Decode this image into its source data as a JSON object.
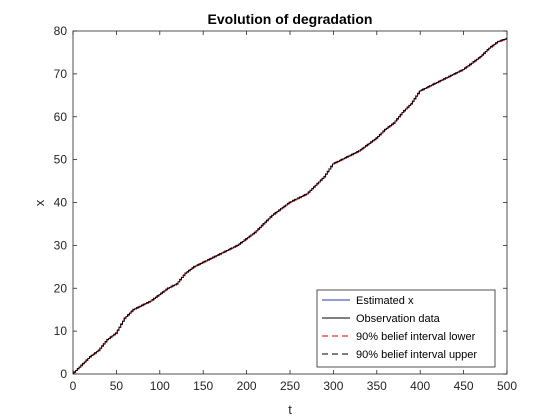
{
  "chart_data": {
    "type": "line",
    "title": "Evolution of degradation",
    "xlabel": "t",
    "ylabel": "x",
    "xlim": [
      0,
      500
    ],
    "ylim": [
      0,
      80
    ],
    "xticks": [
      0,
      50,
      100,
      150,
      200,
      250,
      300,
      350,
      400,
      450,
      500
    ],
    "yticks": [
      0,
      10,
      20,
      30,
      40,
      50,
      60,
      70,
      80
    ],
    "grid": false,
    "legend_position": "bottom-right",
    "series": [
      {
        "name": "Estimated x",
        "color": "#1f3ca8",
        "dash": "solid",
        "x": [
          0,
          10,
          20,
          30,
          40,
          50,
          60,
          70,
          80,
          90,
          100,
          110,
          120,
          130,
          140,
          150,
          160,
          170,
          180,
          190,
          200,
          210,
          220,
          230,
          240,
          250,
          260,
          270,
          280,
          290,
          300,
          310,
          320,
          330,
          340,
          350,
          360,
          370,
          380,
          390,
          400,
          410,
          420,
          430,
          440,
          450,
          460,
          470,
          480,
          490,
          500
        ],
        "y": [
          0,
          2,
          4,
          5.5,
          8,
          9.5,
          13,
          15,
          16,
          17,
          18.5,
          20,
          21,
          23.5,
          25,
          26,
          27,
          28,
          29,
          30,
          31.5,
          33,
          35,
          37,
          38.5,
          40,
          41,
          42,
          44,
          46,
          49,
          50,
          51,
          52,
          53.5,
          55,
          57,
          58.5,
          61,
          63,
          66,
          67,
          68,
          69,
          70,
          71,
          72.5,
          74,
          76,
          77.5,
          78.2
        ]
      },
      {
        "name": "Observation data",
        "color": "#000000",
        "dash": "solid",
        "x": [
          0,
          10,
          20,
          30,
          40,
          50,
          60,
          70,
          80,
          90,
          100,
          110,
          120,
          130,
          140,
          150,
          160,
          170,
          180,
          190,
          200,
          210,
          220,
          230,
          240,
          250,
          260,
          270,
          280,
          290,
          300,
          310,
          320,
          330,
          340,
          350,
          360,
          370,
          380,
          390,
          400,
          410,
          420,
          430,
          440,
          450,
          460,
          470,
          480,
          490,
          500
        ],
        "y": [
          0,
          2,
          4,
          5.5,
          8,
          9.5,
          13,
          15,
          16,
          17,
          18.5,
          20,
          21,
          23.5,
          25,
          26,
          27,
          28,
          29,
          30,
          31.5,
          33,
          35,
          37,
          38.5,
          40,
          41,
          42,
          44,
          46,
          49,
          50,
          51,
          52,
          53.5,
          55,
          57,
          58.5,
          61,
          63,
          66,
          67,
          68,
          69,
          70,
          71,
          72.5,
          74,
          76,
          77.5,
          78.2
        ]
      },
      {
        "name": "90% belief interval lower",
        "color": "#d00000",
        "dash": "dashed",
        "x": [
          0,
          10,
          20,
          30,
          40,
          50,
          60,
          70,
          80,
          90,
          100,
          110,
          120,
          130,
          140,
          150,
          160,
          170,
          180,
          190,
          200,
          210,
          220,
          230,
          240,
          250,
          260,
          270,
          280,
          290,
          300,
          310,
          320,
          330,
          340,
          350,
          360,
          370,
          380,
          390,
          400,
          410,
          420,
          430,
          440,
          450,
          460,
          470,
          480,
          490,
          500
        ],
        "y": [
          0,
          1.9,
          3.9,
          5.4,
          7.9,
          9.4,
          12.9,
          14.9,
          15.9,
          16.9,
          18.4,
          19.9,
          20.9,
          23.4,
          24.9,
          25.9,
          26.9,
          27.9,
          28.9,
          29.9,
          31.4,
          32.9,
          34.9,
          36.9,
          38.4,
          39.9,
          40.9,
          41.9,
          43.9,
          45.9,
          48.9,
          49.9,
          50.9,
          51.9,
          53.4,
          54.9,
          56.9,
          58.4,
          60.9,
          62.9,
          65.9,
          66.9,
          67.9,
          68.9,
          69.9,
          70.9,
          72.4,
          73.9,
          75.9,
          77.4,
          78.1
        ]
      },
      {
        "name": "90% belief interval upper",
        "color": "#000000",
        "dash": "dashed",
        "x": [
          0,
          10,
          20,
          30,
          40,
          50,
          60,
          70,
          80,
          90,
          100,
          110,
          120,
          130,
          140,
          150,
          160,
          170,
          180,
          190,
          200,
          210,
          220,
          230,
          240,
          250,
          260,
          270,
          280,
          290,
          300,
          310,
          320,
          330,
          340,
          350,
          360,
          370,
          380,
          390,
          400,
          410,
          420,
          430,
          440,
          450,
          460,
          470,
          480,
          490,
          500
        ],
        "y": [
          0.1,
          2.1,
          4.1,
          5.6,
          8.1,
          9.6,
          13.1,
          15.1,
          16.1,
          17.1,
          18.6,
          20.1,
          21.1,
          23.6,
          25.1,
          26.1,
          27.1,
          28.1,
          29.1,
          30.1,
          31.6,
          33.1,
          35.1,
          37.1,
          38.6,
          40.1,
          41.1,
          42.1,
          44.1,
          46.1,
          49.1,
          50.1,
          51.1,
          52.1,
          53.6,
          55.1,
          57.1,
          58.6,
          61.1,
          63.1,
          66.1,
          67.1,
          68.1,
          69.1,
          70.1,
          71.1,
          72.6,
          74.1,
          76.1,
          77.6,
          78.3
        ]
      }
    ]
  }
}
